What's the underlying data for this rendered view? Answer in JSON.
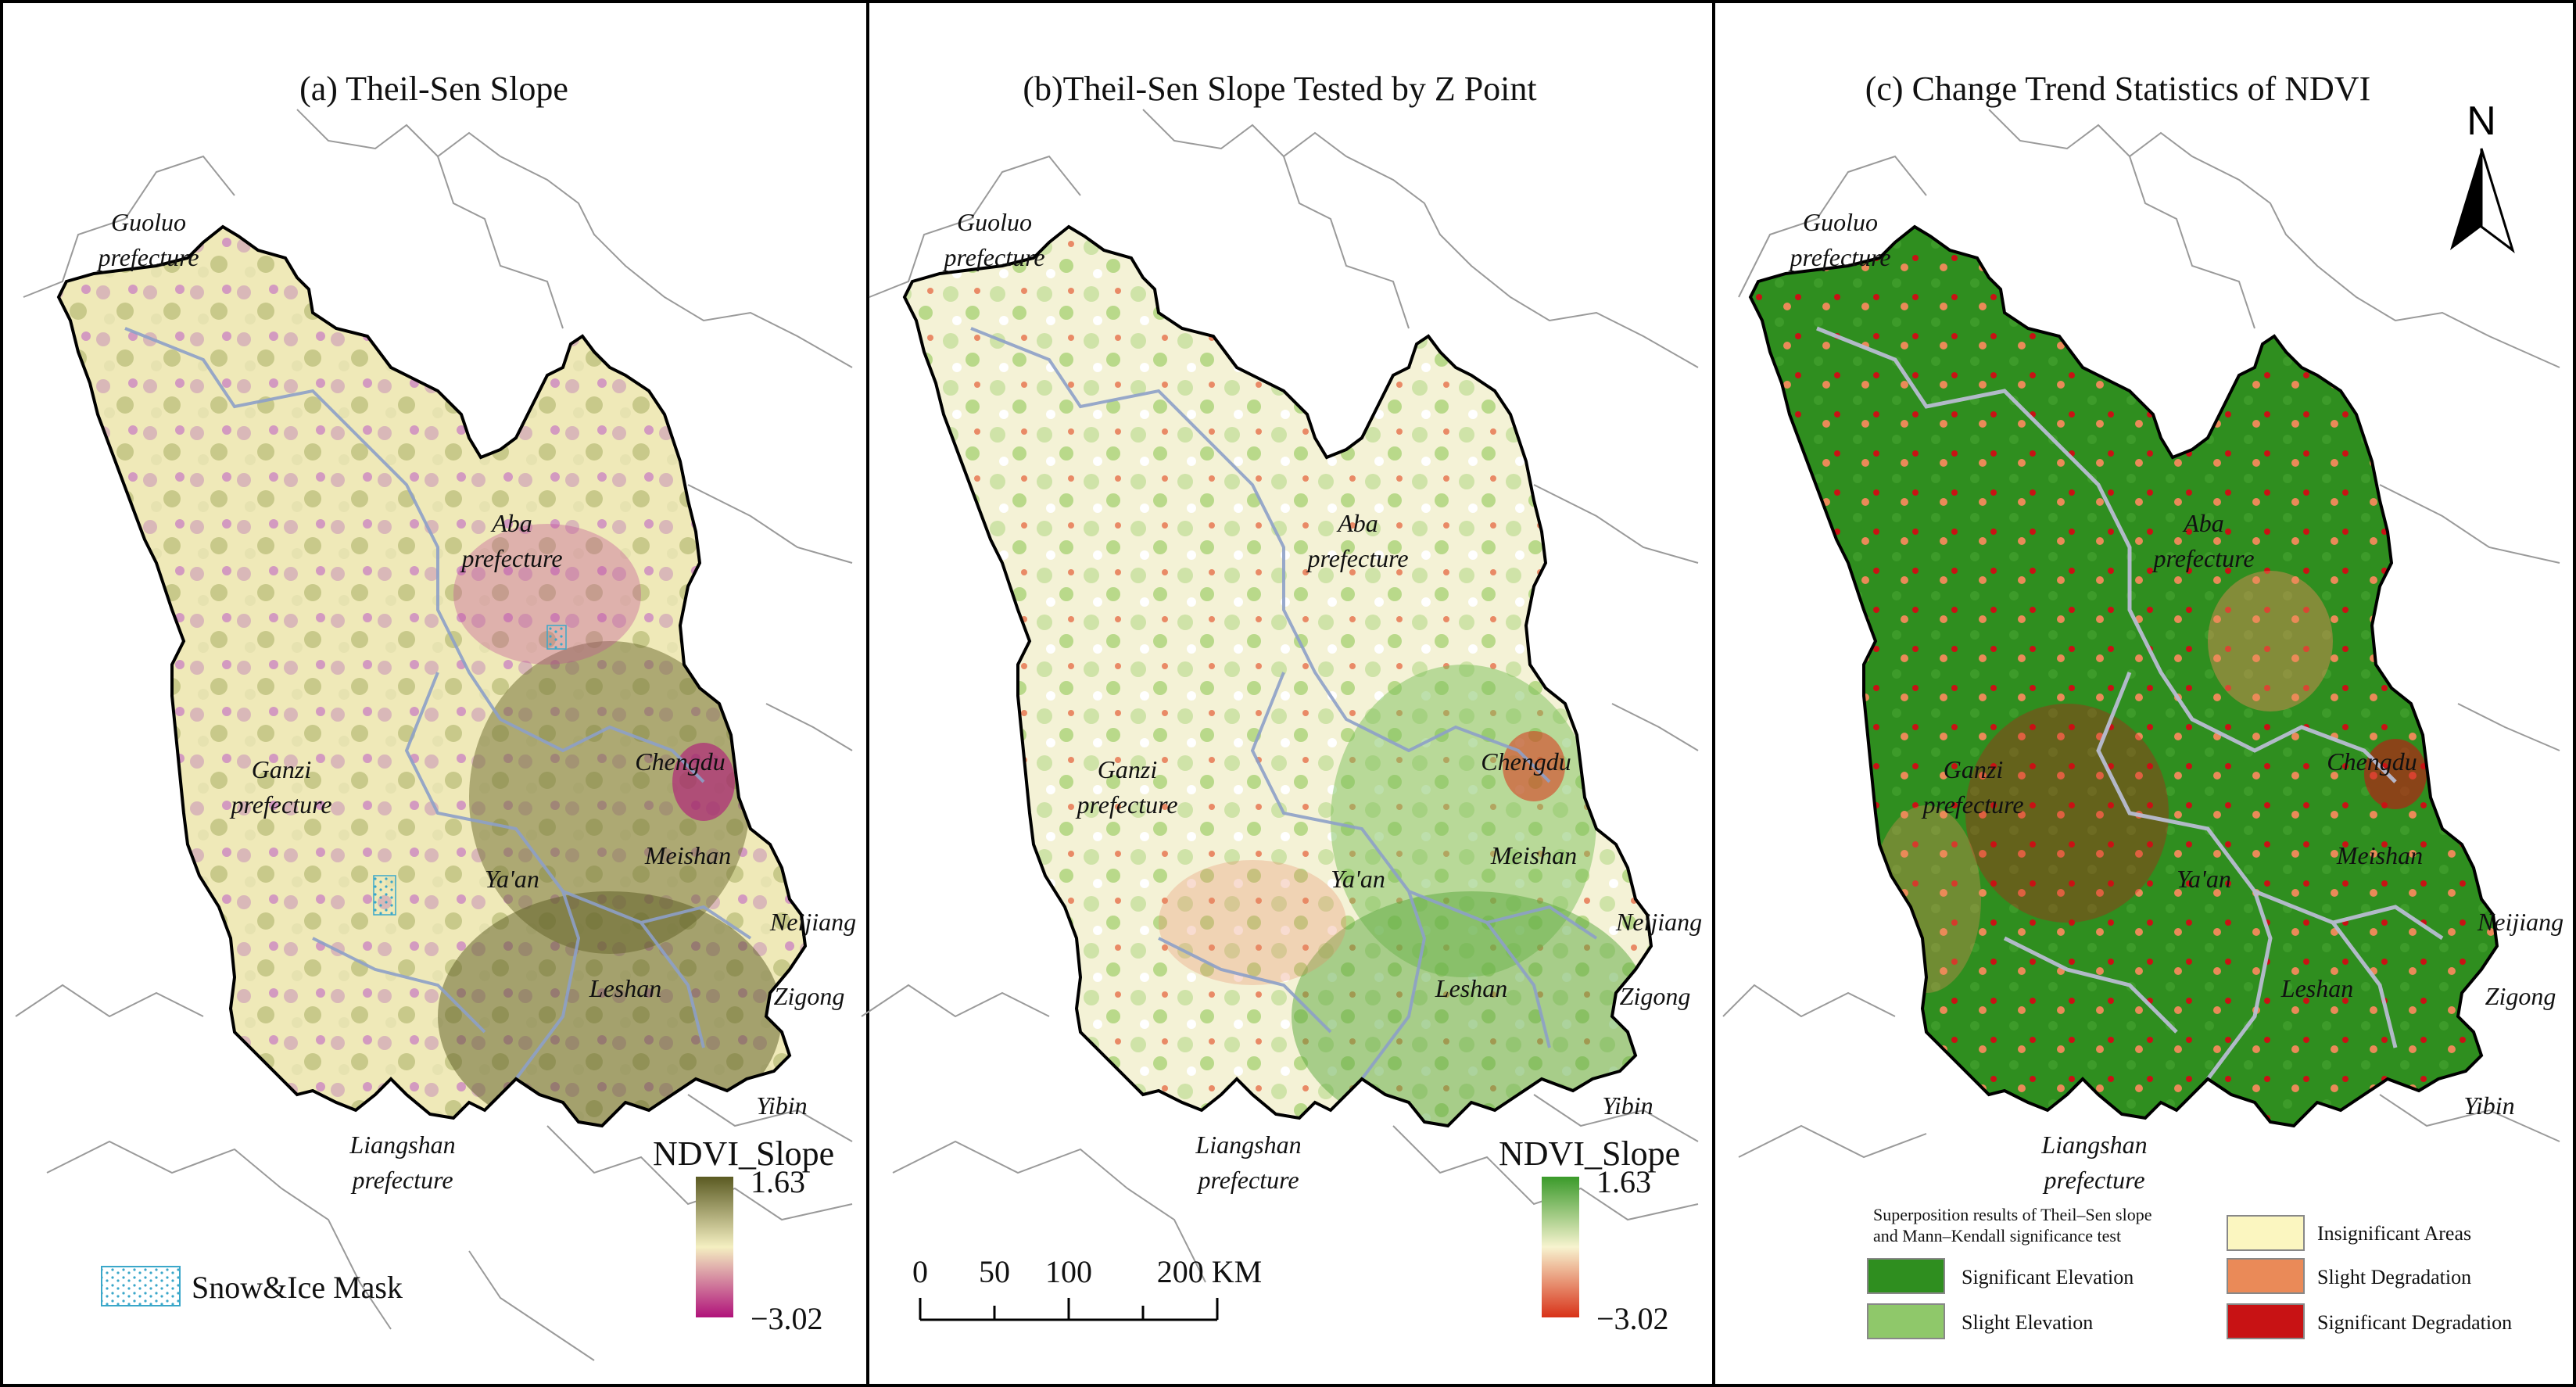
{
  "panels": [
    {
      "id": "a",
      "title": "(a) Theil-Sen Slope",
      "legend_title": "NDVI_Slope",
      "legend_max": "1.63",
      "legend_min": "−3.02",
      "colors": {
        "high": "#5a5a22",
        "mid": "#f4efc1",
        "low": "#b0127a"
      },
      "snow_label": "Snow&Ice Mask"
    },
    {
      "id": "b",
      "title": "(b)Theil-Sen Slope Tested by Z Point",
      "legend_title": "NDVI_Slope",
      "legend_max": "1.63",
      "legend_min": "−3.02",
      "colors": {
        "high": "#3a9a2a",
        "mid": "#f7f3cf",
        "low": "#d83218"
      },
      "scale": {
        "labels": [
          "0",
          "50",
          "100",
          "200 KM"
        ]
      }
    },
    {
      "id": "c",
      "title": "(c) Change Trend Statistics of NDVI",
      "north": "N",
      "legend": {
        "title_line1": "Superposition results of Theil–Sen slope",
        "title_line2": "and Mann–Kendall significance test",
        "items": [
          {
            "label": "Significant Elevation",
            "color": "#2f8e1f"
          },
          {
            "label": "Slight Elevation",
            "color": "#8fc86a"
          },
          {
            "label": "Insignificant Areas",
            "color": "#fbf6c0"
          },
          {
            "label": "Slight Degradation",
            "color": "#ea8a58"
          },
          {
            "label": "Significant Degradation",
            "color": "#c81214"
          }
        ]
      }
    }
  ],
  "places": {
    "guoluo": [
      "Guoluo",
      "prefecture"
    ],
    "aba": [
      "Aba",
      "prefecture"
    ],
    "ganzi": [
      "Ganzi",
      "prefecture"
    ],
    "liangshan": [
      "Liangshan",
      "prefecture"
    ],
    "chengdu": "Chengdu",
    "yaan": "Ya'an",
    "meishan": "Meishan",
    "leshan": "Leshan",
    "neijiang": "Neijiang",
    "zigong": "Zigong",
    "yibin": "Yibin"
  }
}
